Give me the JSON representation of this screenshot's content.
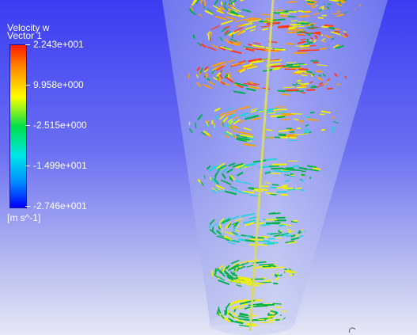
{
  "legend": {
    "title": "Velocity w",
    "subtitle": "Vector 1",
    "labels": [
      "2.243e+001",
      "9.958e+000",
      "-2.515e+000",
      "-1.499e+001",
      "-2.746e+001"
    ],
    "unit": "[m s^-1]"
  },
  "colors": {
    "background_top": "#3b3cf2",
    "background_bottom": "#e6e8f6",
    "cone_fill": "#b4bcee",
    "axis_line": "#d8d86a",
    "vector_red": "#ff3a1a",
    "vector_orange": "#ffa000",
    "vector_yellow": "#f0f000",
    "vector_green": "#00b04a",
    "vector_cyan": "#1ad6d6"
  }
}
